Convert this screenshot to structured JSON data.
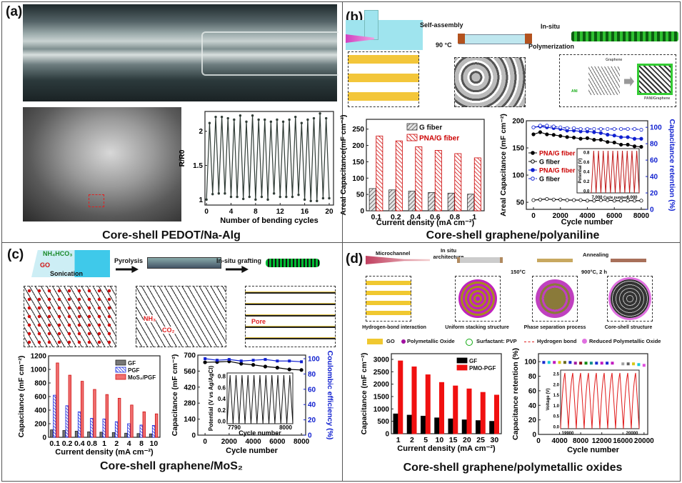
{
  "panels": {
    "a": {
      "label": "(a)",
      "title": "Core-shell PEDOT/Na-Alg"
    },
    "b": {
      "label": "(b)",
      "title": "Core-shell graphene/polyaniline",
      "diagram": {
        "step1": "Self-assembly",
        "temp": "90 °C",
        "step2a": "In-situ",
        "step2b": "Polymerization",
        "graphene": "Graphene",
        "ani": "ANI",
        "product": "PANI/Graphene"
      }
    },
    "c": {
      "label": "(c)",
      "title": "Core-shell graphene/MoS₂",
      "diagram": {
        "reagent": "NH₄HCO₃",
        "go": "GO",
        "sonication": "Sonication",
        "step1": "Pyrolysis",
        "step2": "In-situ grafting",
        "nh3": "NH₃",
        "co2": "CO₂",
        "pore": "Pore"
      }
    },
    "d": {
      "label": "(d)",
      "title": "Core-shell graphene/polymetallic oxides",
      "diagram": {
        "microchannel": "Microchannel",
        "step1": "In situ architecture",
        "temp1": "150°C",
        "step2": "Annealing",
        "temp2": "900°C, 2 h",
        "stages": [
          "Hydrogen-bond interaction",
          "Uniform stacking structure",
          "Phase separation process",
          "Core-shell structure"
        ],
        "legend": [
          "GO",
          "Polymetallic Oxide",
          "Surfactant: PVP",
          "Hydrogen bond",
          "Reduced Polymetallic Oxide"
        ]
      }
    }
  },
  "chart_data": [
    {
      "id": "a",
      "type": "line",
      "xlabel": "Number of bending cycles",
      "ylabel": "R/R0",
      "xlim": [
        -0.25,
        20.7
      ],
      "ylim": [
        0.92,
        2.29
      ],
      "xticks": [
        0,
        4,
        8,
        12,
        16,
        20
      ],
      "yticks": [
        1.0,
        1.5,
        2.0
      ],
      "grid": false,
      "series": [
        {
          "color": "#2f3b35",
          "marker": "dot",
          "x": [
            0,
            0.5,
            1,
            1.5,
            2,
            2.5,
            3,
            3.5,
            4,
            4.5,
            5,
            5.5,
            6,
            6.5,
            7,
            7.5,
            8,
            8.5,
            9,
            9.5,
            10,
            10.5,
            11,
            11.5,
            12,
            12.5,
            13,
            13.5,
            14,
            14.5,
            15,
            15.5,
            16,
            16.5,
            17,
            17.5,
            18,
            18.5,
            19,
            19.5,
            20
          ],
          "y": [
            1.0,
            2.12,
            1.08,
            2.21,
            1.09,
            2.21,
            1.09,
            2.19,
            1.04,
            2.17,
            1.04,
            2.23,
            1.01,
            2.14,
            1.04,
            2.23,
            1.0,
            2.17,
            1.04,
            2.17,
            1.0,
            2.14,
            1.09,
            2.17,
            1.04,
            2.14,
            1.04,
            2.17,
            1.04,
            2.21,
            1.07,
            2.12,
            1.0,
            2.17,
            0.98,
            2.19,
            0.98,
            2.26,
            1.02,
            2.19,
            1.02
          ]
        }
      ]
    },
    {
      "id": "b-bar",
      "type": "bar",
      "xlabel": "Current density (mA cm⁻²)",
      "ylabel": "Areal Capacitance(mF cm⁻²)",
      "categories": [
        "0.1",
        "0.2",
        "0.4",
        "0.6",
        "0.8",
        "1"
      ],
      "ylim": [
        0,
        280
      ],
      "yticks": [
        0,
        50,
        100,
        150,
        200,
        250
      ],
      "legend": "top-right",
      "series": [
        {
          "name": "G fiber",
          "values": [
            68,
            64,
            60,
            56,
            54,
            51
          ],
          "color": "#d8d8d8",
          "stroke": "#333",
          "hatch": true
        },
        {
          "name": "PNA/G fiber",
          "values": [
            229,
            214,
            196,
            185,
            175,
            162
          ],
          "color": "#f3c6c6",
          "stroke": "#c00",
          "hatch": true
        }
      ]
    },
    {
      "id": "b-line",
      "type": "line",
      "xlabel": "Cycle number",
      "ylabel": "Areal Capacitance (mF cm⁻²)",
      "y2label": "Capacitance retention (%)",
      "xlim": [
        -530,
        8480
      ],
      "ylim": [
        37,
        200
      ],
      "y2lim": [
        0,
        108
      ],
      "xticks": [
        0,
        2000,
        4000,
        6000,
        8000
      ],
      "yticks": [
        50,
        100,
        150,
        200
      ],
      "y2ticks": [
        0,
        20,
        40,
        60,
        80,
        100
      ],
      "legend": "left",
      "x": [
        0,
        500,
        1000,
        1500,
        2000,
        2500,
        3000,
        3500,
        4000,
        4500,
        5000,
        5500,
        6000,
        6500,
        7000,
        7500,
        8000
      ],
      "series": [
        {
          "name": "PNA/G fiber",
          "axis": "left",
          "color": "#000",
          "marker": "filled",
          "label_color": "#c00",
          "y": [
            175,
            179,
            175,
            174,
            172,
            170,
            169,
            167,
            168,
            165,
            165,
            161,
            160,
            156,
            156,
            153,
            152
          ]
        },
        {
          "name": "G fiber",
          "axis": "left",
          "color": "#000",
          "marker": "open",
          "label_color": "#000",
          "y": [
            54,
            55,
            56,
            55,
            55,
            54,
            54,
            54,
            53,
            53,
            54,
            54,
            53,
            53,
            53,
            53,
            53
          ]
        },
        {
          "name": "PNA/G fiber",
          "axis": "right",
          "color": "#1020d0",
          "marker": "filled",
          "label_color": "#c00",
          "y": [
            100,
            101,
            100,
            99,
            98,
            96,
            96,
            95,
            95,
            94,
            93,
            91,
            90,
            88,
            88,
            86,
            86
          ]
        },
        {
          "name": "G fiber",
          "axis": "right",
          "color": "#1020d0",
          "marker": "open",
          "dashed": true,
          "label_color": "#000",
          "y": [
            100,
            102,
            102,
            101,
            100,
            99,
            99,
            98,
            98,
            98,
            98,
            98,
            98,
            98,
            98,
            98,
            97
          ]
        }
      ],
      "inset": {
        "xlabel": "Cycle number",
        "ylabel": "Potential (V)",
        "xticks": [
          "7,000",
          "8,000"
        ],
        "yticks": [
          "0.0",
          "0.2",
          "0.4",
          "0.6",
          "0.8"
        ],
        "cycles": 10,
        "color": "#c01818",
        "shape": "triangle"
      }
    },
    {
      "id": "c-bar",
      "type": "bar",
      "xlabel": "Current density (mA cm⁻²)",
      "ylabel": "Capacitance (mF cm⁻²)",
      "categories": [
        "0.1",
        "0.2",
        "0.4",
        "0.8",
        "1",
        "2",
        "4",
        "8",
        "10"
      ],
      "ylim": [
        0,
        1200
      ],
      "yticks": [
        0,
        200,
        400,
        600,
        800,
        1000,
        1200
      ],
      "legend": "top-right",
      "series": [
        {
          "name": "GF",
          "values": [
            110,
            100,
            90,
            80,
            75,
            70,
            60,
            55,
            50
          ],
          "color": "#777",
          "stroke": "#222",
          "hatch": false
        },
        {
          "name": "PGF",
          "values": [
            620,
            465,
            375,
            280,
            270,
            230,
            200,
            180,
            175
          ],
          "color": "#9aa6ff",
          "stroke": "#1a2be0",
          "hatch": true
        },
        {
          "name": "MoS₂/PGF",
          "values": [
            1095,
            915,
            825,
            705,
            630,
            575,
            475,
            375,
            345
          ],
          "color": "#f07070",
          "stroke": "#d01010",
          "hatch": false
        }
      ]
    },
    {
      "id": "c-line",
      "type": "line",
      "xlabel": "Cycle number",
      "ylabel": "Capacitance (mF cm⁻²)",
      "y2label": "Coulombic efficiency (%)",
      "xlim": [
        -600,
        8350
      ],
      "ylim": [
        0,
        700
      ],
      "y2lim": [
        0,
        104.7
      ],
      "xticks": [
        0,
        2000,
        4000,
        6000,
        8000
      ],
      "yticks": [
        0,
        140,
        280,
        420,
        560,
        700
      ],
      "y2ticks": [
        0,
        20,
        40,
        60,
        80,
        100
      ],
      "x": [
        0,
        1000,
        2000,
        3000,
        4000,
        5000,
        6000,
        7000,
        8000
      ],
      "series": [
        {
          "axis": "left",
          "color": "#000",
          "marker": "filled",
          "y": [
            637,
            640,
            645,
            625,
            615,
            600,
            590,
            575,
            570
          ]
        },
        {
          "axis": "right",
          "color": "#1020d0",
          "marker": "square",
          "y": [
            100,
            98,
            99,
            97,
            98,
            99,
            97,
            97,
            96
          ]
        }
      ],
      "inset": {
        "xlabel": "Cycle number",
        "ylabel": "Potential (V vs Ag/AgCl)",
        "xticks": [
          "7790",
          "8000"
        ],
        "yticks": [
          "0.0",
          "0.2",
          "0.4",
          "0.6",
          "0.8"
        ],
        "cycles": 11,
        "color": "#111",
        "shape": "triangle"
      }
    },
    {
      "id": "d-bar",
      "type": "bar",
      "xlabel": "Current density (mA cm⁻²)",
      "ylabel": "Capacitance (mF cm⁻²)",
      "categories": [
        "1",
        "2",
        "5",
        "10",
        "15",
        "20",
        "25",
        "30"
      ],
      "ylim": [
        0,
        3230
      ],
      "yticks": [
        0,
        500,
        1000,
        1500,
        2000,
        2500,
        3000
      ],
      "legend": "top-right",
      "series": [
        {
          "name": "GF",
          "values": [
            800,
            750,
            710,
            640,
            600,
            560,
            530,
            500
          ],
          "color": "#000",
          "stroke": "#000",
          "hatch": false
        },
        {
          "name": "PMO-PGF",
          "values": [
            2940,
            2700,
            2380,
            2070,
            1930,
            1810,
            1670,
            1560
          ],
          "color": "#f01010",
          "stroke": "#f01010",
          "hatch": false
        }
      ]
    },
    {
      "id": "d-line",
      "type": "scatter",
      "xlabel": "Cycle number",
      "ylabel": "Capacitance retention (%)",
      "xlim": [
        0,
        20700
      ],
      "ylim": [
        0,
        111
      ],
      "xticks": [
        0,
        4000,
        8000,
        12000,
        16000,
        20000
      ],
      "yticks": [
        0,
        20,
        40,
        60,
        80,
        100
      ],
      "series": [
        {
          "marker": "square",
          "x": [
            1000,
            2000,
            3000,
            4000,
            5000,
            6000,
            7000,
            8000,
            9000,
            10000,
            11000,
            12000,
            13000,
            14000,
            16000,
            17000,
            18000,
            19000,
            20000
          ],
          "y": [
            99,
            99,
            99,
            99,
            99,
            99,
            98,
            98,
            98,
            98,
            98,
            98,
            98,
            98,
            97,
            97,
            97,
            96,
            95
          ],
          "colors": [
            "#1a2bd0",
            "#18c8d8",
            "#c018c0",
            "#d8c818",
            "#6a6a20",
            "#1a2bd0",
            "#a018a0",
            "#8a1010",
            "#108a10",
            "#108a8a",
            "#1a2bd0",
            "#c018c0",
            "#1a2bd0",
            "#c018c0",
            "#a0a0a0",
            "#606060",
            "#d8c818",
            "#18c8d8",
            "#e050e0"
          ]
        }
      ],
      "inset": {
        "xlabel": "",
        "ylabel": "Voltage (V)",
        "xticks": [
          "19900",
          "20000"
        ],
        "yticks": [
          "0.0",
          "0.5",
          "1.0",
          "1.5",
          "2.0",
          "2.5"
        ],
        "cycles": 10,
        "color": "#e01818",
        "shape": "saw"
      }
    }
  ]
}
